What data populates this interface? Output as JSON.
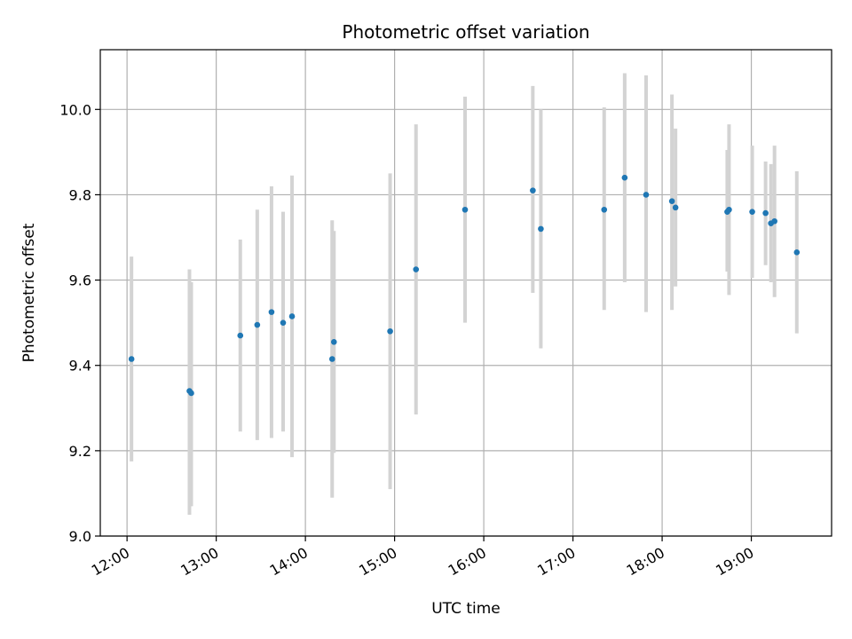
{
  "chart_data": {
    "type": "scatter",
    "title": "Photometric offset variation",
    "xlabel": "UTC time",
    "ylabel": "Photometric offset",
    "x_unit": "hours UTC",
    "xlim": [
      11.7,
      19.9
    ],
    "ylim": [
      9.0,
      10.14
    ],
    "xticks": [
      12,
      13,
      14,
      15,
      16,
      17,
      18,
      19
    ],
    "xtick_labels": [
      "12:00",
      "13:00",
      "14:00",
      "15:00",
      "16:00",
      "17:00",
      "18:00",
      "19:00"
    ],
    "yticks": [
      9.0,
      9.2,
      9.4,
      9.6,
      9.8,
      10.0
    ],
    "ytick_labels": [
      "9.0",
      "9.2",
      "9.4",
      "9.6",
      "9.8",
      "10.0"
    ],
    "grid": true,
    "marker_color": "#1f77b4",
    "errorbar_color": "#d3d3d3",
    "points": [
      {
        "x": 12.05,
        "y": 9.415,
        "ylo": 9.175,
        "yhi": 9.655
      },
      {
        "x": 12.7,
        "y": 9.34,
        "ylo": 9.05,
        "yhi": 9.625
      },
      {
        "x": 12.72,
        "y": 9.335,
        "ylo": 9.07,
        "yhi": 9.595
      },
      {
        "x": 13.27,
        "y": 9.47,
        "ylo": 9.245,
        "yhi": 9.695
      },
      {
        "x": 13.46,
        "y": 9.495,
        "ylo": 9.225,
        "yhi": 9.765
      },
      {
        "x": 13.62,
        "y": 9.525,
        "ylo": 9.23,
        "yhi": 9.82
      },
      {
        "x": 13.75,
        "y": 9.5,
        "ylo": 9.245,
        "yhi": 9.76
      },
      {
        "x": 13.85,
        "y": 9.515,
        "ylo": 9.185,
        "yhi": 9.845
      },
      {
        "x": 14.3,
        "y": 9.415,
        "ylo": 9.09,
        "yhi": 9.74
      },
      {
        "x": 14.32,
        "y": 9.455,
        "ylo": 9.195,
        "yhi": 9.715
      },
      {
        "x": 14.95,
        "y": 9.48,
        "ylo": 9.11,
        "yhi": 9.85
      },
      {
        "x": 15.24,
        "y": 9.625,
        "ylo": 9.285,
        "yhi": 9.965
      },
      {
        "x": 15.79,
        "y": 9.765,
        "ylo": 9.5,
        "yhi": 10.03
      },
      {
        "x": 16.55,
        "y": 9.81,
        "ylo": 9.57,
        "yhi": 10.055
      },
      {
        "x": 16.64,
        "y": 9.72,
        "ylo": 9.44,
        "yhi": 10.0
      },
      {
        "x": 17.35,
        "y": 9.765,
        "ylo": 9.53,
        "yhi": 10.005
      },
      {
        "x": 17.58,
        "y": 9.84,
        "ylo": 9.595,
        "yhi": 10.085
      },
      {
        "x": 17.82,
        "y": 9.8,
        "ylo": 9.525,
        "yhi": 10.08
      },
      {
        "x": 18.11,
        "y": 9.785,
        "ylo": 9.53,
        "yhi": 10.035
      },
      {
        "x": 18.15,
        "y": 9.77,
        "ylo": 9.585,
        "yhi": 9.955
      },
      {
        "x": 18.73,
        "y": 9.76,
        "ylo": 9.62,
        "yhi": 9.905
      },
      {
        "x": 18.75,
        "y": 9.765,
        "ylo": 9.565,
        "yhi": 9.965
      },
      {
        "x": 19.01,
        "y": 9.76,
        "ylo": 9.605,
        "yhi": 9.915
      },
      {
        "x": 19.16,
        "y": 9.757,
        "ylo": 9.635,
        "yhi": 9.878
      },
      {
        "x": 19.22,
        "y": 9.733,
        "ylo": 9.595,
        "yhi": 9.872
      },
      {
        "x": 19.26,
        "y": 9.738,
        "ylo": 9.56,
        "yhi": 9.915
      },
      {
        "x": 19.51,
        "y": 9.665,
        "ylo": 9.475,
        "yhi": 9.855
      }
    ]
  }
}
